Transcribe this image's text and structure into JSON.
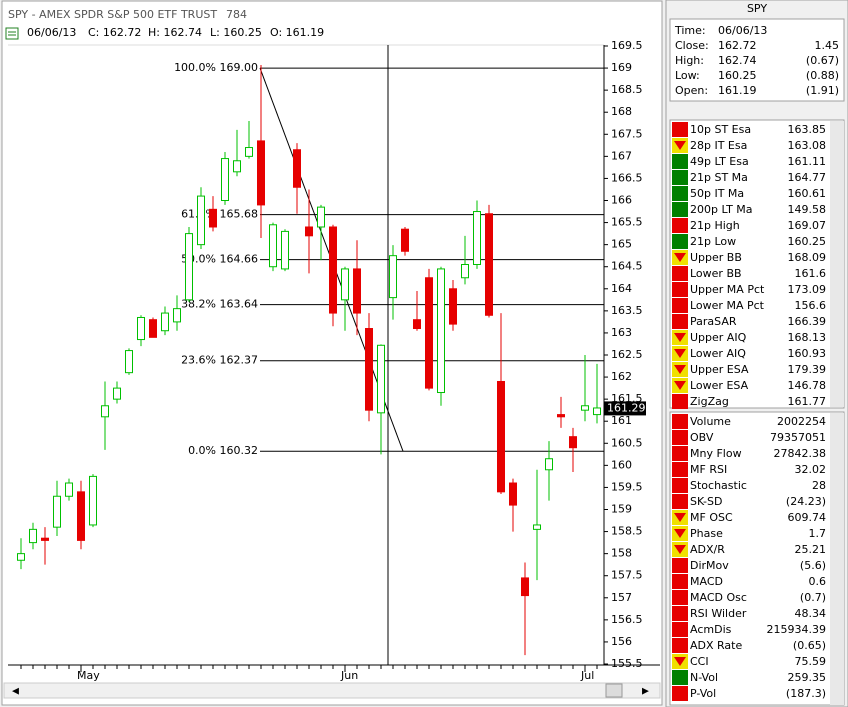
{
  "chart_data": {
    "type": "candlestick",
    "title": "SPY - AMEX SPDR S&P 500 ETF TRUST",
    "title_code": "784",
    "info": [
      "06/06/13",
      "C: 162.72",
      "H: 162.74",
      "L: 160.25",
      "O: 161.19"
    ],
    "open": [
      157.85,
      158.25,
      158.35,
      158.6,
      159.3,
      159.4,
      158.65,
      161.1,
      161.5,
      162.1,
      162.85,
      163.3,
      163.05,
      163.25,
      163.75,
      165.0,
      165.8,
      166.0,
      166.65,
      167.0,
      167.35,
      164.5,
      164.45,
      167.15,
      165.4,
      165.4,
      165.4,
      163.75,
      164.45,
      163.1,
      161.19,
      163.8,
      165.35,
      163.3,
      164.25,
      161.65,
      164.0,
      164.25,
      164.55,
      165.7,
      161.9,
      159.6,
      157.45,
      158.55,
      159.9,
      161.15,
      160.65,
      161.25,
      161.15
    ],
    "high": [
      158.35,
      158.7,
      158.6,
      159.65,
      159.7,
      159.65,
      159.8,
      161.9,
      161.9,
      162.65,
      163.4,
      163.35,
      163.6,
      163.85,
      165.4,
      166.3,
      166.1,
      167.1,
      167.6,
      167.8,
      169.07,
      165.5,
      165.35,
      167.3,
      166.25,
      165.9,
      165.45,
      164.5,
      165.1,
      163.45,
      162.74,
      164.99,
      165.4,
      163.95,
      164.45,
      164.5,
      164.2,
      165.2,
      166.0,
      165.9,
      163.45,
      159.7,
      157.8,
      159.9,
      160.55,
      161.55,
      160.85,
      162.5,
      162.3
    ],
    "low": [
      157.65,
      158.1,
      157.75,
      158.4,
      159.2,
      158.1,
      158.6,
      160.35,
      161.4,
      162.05,
      162.7,
      162.9,
      162.95,
      163.05,
      163.7,
      164.9,
      165.3,
      165.9,
      166.55,
      166.95,
      165.15,
      164.4,
      164.4,
      165.7,
      164.35,
      164.65,
      163.15,
      163.05,
      162.95,
      161.0,
      160.25,
      163.3,
      164.75,
      163.05,
      161.7,
      161.35,
      163.05,
      164.1,
      164.45,
      163.35,
      159.35,
      158.5,
      155.7,
      157.4,
      159.2,
      160.85,
      159.85,
      161.0,
      160.95
    ],
    "close": [
      158.0,
      158.55,
      158.3,
      159.3,
      159.6,
      158.3,
      159.75,
      161.35,
      161.75,
      162.6,
      163.35,
      162.9,
      163.45,
      163.55,
      165.25,
      166.1,
      165.4,
      166.95,
      166.9,
      167.2,
      165.9,
      165.45,
      165.3,
      166.3,
      165.2,
      165.85,
      163.45,
      164.45,
      163.45,
      161.25,
      162.72,
      164.75,
      164.85,
      163.1,
      161.75,
      164.45,
      163.2,
      164.55,
      165.75,
      163.4,
      159.4,
      159.1,
      157.05,
      158.65,
      160.15,
      161.1,
      160.4,
      161.35,
      161.3
    ],
    "up_color": "#00c000",
    "down_color": "#e60000",
    "xticks": [
      {
        "value": 5,
        "label": "May"
      },
      {
        "value": 27,
        "label": "Jun"
      },
      {
        "value": 47,
        "label": "Jul"
      }
    ],
    "ylim": [
      155.5,
      169.5
    ],
    "yticks": [
      155.5,
      156,
      156.5,
      157,
      157.5,
      158,
      158.5,
      159,
      159.5,
      160,
      160.5,
      161,
      161.5,
      162,
      162.5,
      163,
      163.5,
      164,
      164.5,
      165,
      165.5,
      166,
      166.5,
      167,
      167.5,
      168,
      168.5,
      169,
      169.5
    ],
    "fib_levels": [
      {
        "label": "100.0% 169.00",
        "value": 169.0
      },
      {
        "label": "61.8% 165.68",
        "value": 165.68
      },
      {
        "label": "50.0% 164.66",
        "value": 164.66
      },
      {
        "label": "38.2% 163.64",
        "value": 163.64
      },
      {
        "label": "23.6% 162.37",
        "value": 162.37
      },
      {
        "label": "0.0% 160.32",
        "value": 160.32
      }
    ],
    "last_price": 161.29
  },
  "panel": {
    "title": "SPY",
    "quote": [
      {
        "label": "Time:",
        "value": "06/06/13"
      },
      {
        "label": "Close:",
        "value": "162.72",
        "change": "1.45"
      },
      {
        "label": "High:",
        "value": "162.74",
        "change": "(0.67)"
      },
      {
        "label": "Low:",
        "value": "160.25",
        "change": "(0.88)"
      },
      {
        "label": "Open:",
        "value": "161.19",
        "change": "(1.91)"
      }
    ],
    "indicators": [
      {
        "name": "10p ST Esa",
        "value": "163.85",
        "color": "#e60000"
      },
      {
        "name": "28p IT Esa",
        "value": "163.08",
        "color": "#f0e000"
      },
      {
        "name": "49p LT Esa",
        "value": "161.11",
        "color": "#008000"
      },
      {
        "name": "21p ST Ma",
        "value": "164.77",
        "color": "#008000"
      },
      {
        "name": "50p IT Ma",
        "value": "160.61",
        "color": "#008000"
      },
      {
        "name": "200p LT Ma",
        "value": "149.58",
        "color": "#008000"
      },
      {
        "name": "21p High",
        "value": "169.07",
        "color": "#e60000"
      },
      {
        "name": "21p Low",
        "value": "160.25",
        "color": "#008000"
      },
      {
        "name": "Upper BB",
        "value": "168.09",
        "color": "#f0e000"
      },
      {
        "name": "Lower BB",
        "value": "161.6",
        "color": "#e60000"
      },
      {
        "name": "Upper MA Pct",
        "value": "173.09",
        "color": "#e60000"
      },
      {
        "name": "Lower MA Pct",
        "value": "156.6",
        "color": "#e60000"
      },
      {
        "name": "ParaSAR",
        "value": "166.39",
        "color": "#e60000"
      },
      {
        "name": "Upper AIQ",
        "value": "168.13",
        "color": "#f0e000"
      },
      {
        "name": "Lower AIQ",
        "value": "160.93",
        "color": "#f0e000"
      },
      {
        "name": "Upper ESA",
        "value": "179.39",
        "color": "#f0e000"
      },
      {
        "name": "Lower ESA",
        "value": "146.78",
        "color": "#f0e000"
      },
      {
        "name": "ZigZag",
        "value": "161.77",
        "color": "#e60000"
      }
    ],
    "indicators2": [
      {
        "name": "Volume",
        "value": "2002254",
        "color": "#e60000"
      },
      {
        "name": "OBV",
        "value": "79357051",
        "color": "#e60000"
      },
      {
        "name": "Mny Flow",
        "value": "27842.38",
        "color": "#e60000"
      },
      {
        "name": "MF RSI",
        "value": "32.02",
        "color": "#e60000"
      },
      {
        "name": "Stochastic",
        "value": "28",
        "color": "#e60000"
      },
      {
        "name": "SK-SD",
        "value": "(24.23)",
        "color": "#e60000"
      },
      {
        "name": "MF OSC",
        "value": "609.74",
        "color": "#f0e000"
      },
      {
        "name": "Phase",
        "value": "1.7",
        "color": "#f0e000"
      },
      {
        "name": "ADX/R",
        "value": "25.21",
        "color": "#f0e000"
      },
      {
        "name": "DirMov",
        "value": "(5.6)",
        "color": "#e60000"
      },
      {
        "name": "MACD",
        "value": "0.6",
        "color": "#e60000"
      },
      {
        "name": "MACD Osc",
        "value": "(0.7)",
        "color": "#e60000"
      },
      {
        "name": "RSI Wilder",
        "value": "48.34",
        "color": "#e60000"
      },
      {
        "name": "AcmDis",
        "value": "215934.39",
        "color": "#e60000"
      },
      {
        "name": "ADX Rate",
        "value": "(0.65)",
        "color": "#e60000"
      },
      {
        "name": "CCI",
        "value": "75.59",
        "color": "#f0e000"
      },
      {
        "name": "N-Vol",
        "value": "259.35",
        "color": "#008000"
      },
      {
        "name": "P-Vol",
        "value": "(187.3)",
        "color": "#e60000"
      }
    ]
  }
}
